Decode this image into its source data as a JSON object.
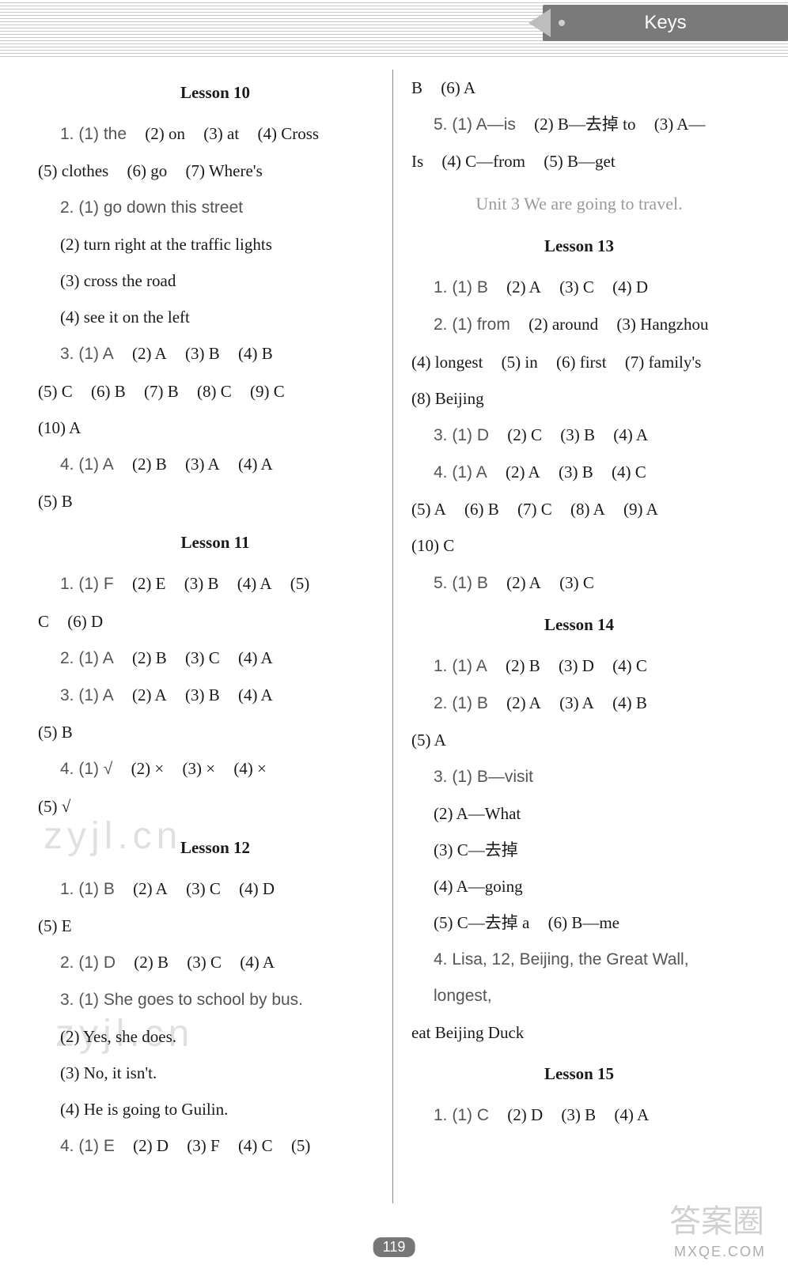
{
  "colors": {
    "background": "#ffffff",
    "text": "#1a1a1a",
    "qnum": "#555555",
    "unit_title": "#9a9a9a",
    "header_dots": "#c8c8c8",
    "tab_bg": "#7a7a7a",
    "tab_text": "#ffffff",
    "divider": "#8a8a8a",
    "badge_bg": "#777777"
  },
  "typography": {
    "body_font": "Times New Roman",
    "body_size_pt": 16,
    "qnum_font": "Arial",
    "line_height": 2.2
  },
  "header": {
    "tab_label": "Keys"
  },
  "page_number": "119",
  "watermarks": {
    "w1": "zyjl.cn",
    "w2": "zyjl.cn",
    "w3": "答案圈",
    "w4": "MXQE.COM"
  },
  "left": {
    "lesson10_title": "Lesson 10",
    "l10_q1_a": "1. (1) the",
    "l10_q1_b": "(2) on",
    "l10_q1_c": "(3) at",
    "l10_q1_d": "(4) Cross",
    "l10_q1_e": "(5) clothes",
    "l10_q1_f": "(6) go",
    "l10_q1_g": "(7) Where's",
    "l10_q2_a": "2. (1) go down this street",
    "l10_q2_b": "(2) turn right at the traffic lights",
    "l10_q2_c": "(3) cross the road",
    "l10_q2_d": "(4) see it on the left",
    "l10_q3_a": "3. (1) A",
    "l10_q3_b": "(2) A",
    "l10_q3_c": "(3) B",
    "l10_q3_d": "(4) B",
    "l10_q3_e": "(5) C",
    "l10_q3_f": "(6) B",
    "l10_q3_g": "(7) B",
    "l10_q3_h": "(8) C",
    "l10_q3_i": "(9) C",
    "l10_q3_j": "(10) A",
    "l10_q4_a": "4. (1) A",
    "l10_q4_b": "(2) B",
    "l10_q4_c": "(3) A",
    "l10_q4_d": "(4) A",
    "l10_q4_e": "(5) B",
    "lesson11_title": "Lesson 11",
    "l11_q1_a": "1. (1) F",
    "l11_q1_b": "(2) E",
    "l11_q1_c": "(3) B",
    "l11_q1_d": "(4) A",
    "l11_q1_e": "(5)",
    "l11_q1_f": "C",
    "l11_q1_g": "(6) D",
    "l11_q2_a": "2. (1) A",
    "l11_q2_b": "(2) B",
    "l11_q2_c": "(3) C",
    "l11_q2_d": "(4) A",
    "l11_q3_a": "3. (1) A",
    "l11_q3_b": "(2) A",
    "l11_q3_c": "(3) B",
    "l11_q3_d": "(4) A",
    "l11_q3_e": "(5) B",
    "l11_q4_a": "4. (1) √",
    "l11_q4_b": "(2) ×",
    "l11_q4_c": "(3) ×",
    "l11_q4_d": "(4) ×",
    "l11_q4_e": "(5) √",
    "lesson12_title": "Lesson 12",
    "l12_q1_a": "1. (1) B",
    "l12_q1_b": "(2) A",
    "l12_q1_c": "(3) C",
    "l12_q1_d": "(4) D",
    "l12_q1_e": "(5) E",
    "l12_q2_a": "2. (1) D",
    "l12_q2_b": "(2) B",
    "l12_q2_c": "(3) C",
    "l12_q2_d": "(4) A",
    "l12_q3_a": "3. (1) She goes to school by bus.",
    "l12_q3_b": "(2) Yes, she does.",
    "l12_q3_c": "(3) No, it isn't.",
    "l12_q3_d": "(4) He is going to Guilin.",
    "l12_q4_a": "4. (1) E",
    "l12_q4_b": "(2) D",
    "l12_q4_c": "(3) F",
    "l12_q4_d": "(4) C",
    "l12_q4_e": "(5)"
  },
  "right": {
    "cont1": "B",
    "cont2": "(6) A",
    "l12_q5_a": "5. (1) A—is",
    "l12_q5_b": "(2) B—去掉 to",
    "l12_q5_c": "(3) A—",
    "l12_q5_d": "Is",
    "l12_q5_e": "(4) C—from",
    "l12_q5_f": "(5) B—get",
    "unit3_title": "Unit 3   We are going to travel.",
    "lesson13_title": "Lesson 13",
    "l13_q1_a": "1. (1) B",
    "l13_q1_b": "(2) A",
    "l13_q1_c": "(3) C",
    "l13_q1_d": "(4) D",
    "l13_q2_a": "2. (1) from",
    "l13_q2_b": "(2) around",
    "l13_q2_c": "(3) Hangzhou",
    "l13_q2_d": "(4) longest",
    "l13_q2_e": "(5) in",
    "l13_q2_f": "(6) first",
    "l13_q2_g": "(7) family's",
    "l13_q2_h": "(8) Beijing",
    "l13_q3_a": "3. (1) D",
    "l13_q3_b": "(2) C",
    "l13_q3_c": "(3) B",
    "l13_q3_d": "(4) A",
    "l13_q4_a": "4. (1) A",
    "l13_q4_b": "(2) A",
    "l13_q4_c": "(3) B",
    "l13_q4_d": "(4) C",
    "l13_q4_e": "(5) A",
    "l13_q4_f": "(6) B",
    "l13_q4_g": "(7) C",
    "l13_q4_h": "(8) A",
    "l13_q4_i": "(9) A",
    "l13_q4_j": "(10) C",
    "l13_q5_a": "5. (1) B",
    "l13_q5_b": "(2) A",
    "l13_q5_c": "(3) C",
    "lesson14_title": "Lesson 14",
    "l14_q1_a": "1. (1) A",
    "l14_q1_b": "(2) B",
    "l14_q1_c": "(3) D",
    "l14_q1_d": "(4) C",
    "l14_q2_a": "2. (1) B",
    "l14_q2_b": "(2) A",
    "l14_q2_c": "(3) A",
    "l14_q2_d": "(4) B",
    "l14_q2_e": "(5) A",
    "l14_q3_a": "3. (1) B—visit",
    "l14_q3_b": "(2) A—What",
    "l14_q3_c": "(3) C—去掉",
    "l14_q3_d": "(4) A—going",
    "l14_q3_e": "(5) C—去掉 a",
    "l14_q3_f": "(6) B—me",
    "l14_q4": "4. Lisa, 12, Beijing, the Great Wall, longest,",
    "l14_q4b": "eat Beijing Duck",
    "lesson15_title": "Lesson 15",
    "l15_q1_a": "1. (1) C",
    "l15_q1_b": "(2) D",
    "l15_q1_c": "(3) B",
    "l15_q1_d": "(4) A"
  }
}
